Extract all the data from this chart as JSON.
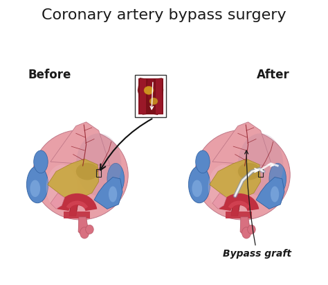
{
  "title": "Coronary artery bypass surgery",
  "title_fontsize": 16,
  "label_before": "Before",
  "label_after": "After",
  "label_fontsize": 12,
  "bypass_label": "Bypass graft",
  "bypass_label_fontsize": 10,
  "bg_color": "#ffffff",
  "heart_pink": "#e8a0a8",
  "heart_pink_dark": "#c07888",
  "heart_pink_shadow": "#b888a0",
  "heart_pink_light": "#f0c0c8",
  "aorta_red": "#c03040",
  "aorta_red_dark": "#8a1520",
  "vein_blue": "#5888c8",
  "vein_blue_dark": "#3060a0",
  "vein_blue_light": "#90b8e8",
  "pericardium_yellow": "#c8a840",
  "pericardium_yellow_dark": "#a08020",
  "artery_dark": "#8b1520",
  "vessel_dark_red": "#9a1828",
  "plaque_yellow": "#d4a020",
  "bypass_color": "#d0d8e8",
  "pink_append": "#e898a8"
}
